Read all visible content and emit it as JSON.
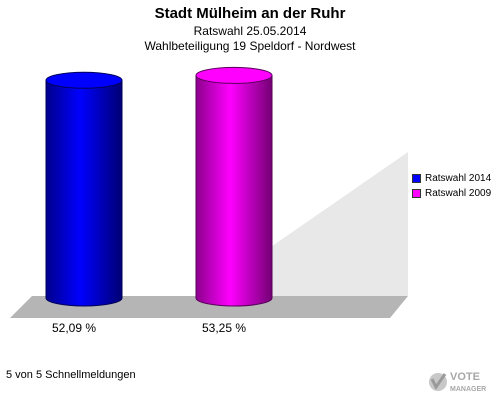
{
  "header": {
    "title": "Stadt Mülheim an der Ruhr",
    "subtitle1": "Ratswahl 25.05.2014",
    "subtitle2": "Wahlbeteiligung 19 Speldorf - Nordwest"
  },
  "chart_data": {
    "type": "bar",
    "title": "Stadt Mülheim an der Ruhr",
    "categories": [
      "Ratswahl 2014",
      "Ratswahl 2009"
    ],
    "values": [
      52.09,
      53.25
    ],
    "value_labels": [
      "52,09 %",
      "53,25 %"
    ],
    "colors": [
      "#0000ff",
      "#ff00ff"
    ],
    "ylim": [
      0,
      60
    ],
    "legend_position": "right",
    "grid": false
  },
  "legend": {
    "items": [
      {
        "label": "Ratswahl 2014",
        "color": "#0000ff"
      },
      {
        "label": "Ratswahl 2009",
        "color": "#ff00ff"
      }
    ]
  },
  "footer": {
    "status": "5 von 5 Schnellmeldungen"
  },
  "logo": {
    "line1": "VOTE",
    "line2": "MANAGER"
  }
}
